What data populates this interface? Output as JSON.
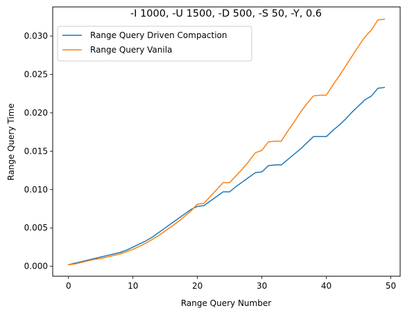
{
  "chart_data": {
    "type": "line",
    "title": "-I 1000, -U 1500, -D 500, -S 50, -Y, 0.6",
    "xlabel": "Range Query Number",
    "ylabel": "Range Query Time",
    "xlim": [
      -2.45,
      51.45
    ],
    "ylim": [
      -0.0013,
      0.0338
    ],
    "xticks": [
      0,
      10,
      20,
      30,
      40,
      50
    ],
    "xtick_labels": [
      "0",
      "10",
      "20",
      "30",
      "40",
      "50"
    ],
    "yticks": [
      0.0,
      0.005,
      0.01,
      0.015,
      0.02,
      0.025,
      0.03
    ],
    "ytick_labels": [
      "0.000",
      "0.005",
      "0.010",
      "0.015",
      "0.020",
      "0.025",
      "0.030"
    ],
    "grid": false,
    "legend_position": "top-left",
    "x": [
      0,
      1,
      2,
      3,
      4,
      5,
      6,
      7,
      8,
      9,
      10,
      11,
      12,
      13,
      14,
      15,
      16,
      17,
      18,
      19,
      20,
      21,
      22,
      23,
      24,
      25,
      26,
      27,
      28,
      29,
      30,
      31,
      32,
      33,
      34,
      35,
      36,
      37,
      38,
      39,
      40,
      41,
      42,
      43,
      44,
      45,
      46,
      47,
      48,
      49
    ],
    "series": [
      {
        "name": "Range Query Driven Compaction",
        "color": "#1f77b4",
        "values": [
          0.0002,
          0.0004,
          0.0006,
          0.0008,
          0.001,
          0.0012,
          0.0014,
          0.0016,
          0.0018,
          0.0021,
          0.0025,
          0.0029,
          0.0033,
          0.0038,
          0.0044,
          0.005,
          0.0056,
          0.0062,
          0.0068,
          0.0074,
          0.0078,
          0.0079,
          0.0085,
          0.0091,
          0.0097,
          0.0097,
          0.0104,
          0.011,
          0.0116,
          0.0122,
          0.0123,
          0.0131,
          0.0132,
          0.0132,
          0.0139,
          0.0146,
          0.0153,
          0.0161,
          0.0169,
          0.0169,
          0.0169,
          0.0177,
          0.0184,
          0.0192,
          0.0201,
          0.0209,
          0.0217,
          0.0222,
          0.0232,
          0.0233
        ]
      },
      {
        "name": "Range Query Vanila",
        "color": "#ff7f0e",
        "values": [
          0.0002,
          0.0003,
          0.0005,
          0.0007,
          0.0009,
          0.001,
          0.0012,
          0.0014,
          0.0016,
          0.0019,
          0.0022,
          0.0026,
          0.003,
          0.0035,
          0.004,
          0.0046,
          0.0052,
          0.0058,
          0.0065,
          0.0072,
          0.0081,
          0.0082,
          0.0091,
          0.01,
          0.0109,
          0.0109,
          0.0118,
          0.0127,
          0.0137,
          0.0148,
          0.0151,
          0.0162,
          0.0163,
          0.0163,
          0.0176,
          0.0188,
          0.0201,
          0.0212,
          0.0222,
          0.0223,
          0.0223,
          0.0236,
          0.0248,
          0.0261,
          0.0274,
          0.0287,
          0.0299,
          0.0308,
          0.0321,
          0.0322
        ]
      }
    ]
  }
}
